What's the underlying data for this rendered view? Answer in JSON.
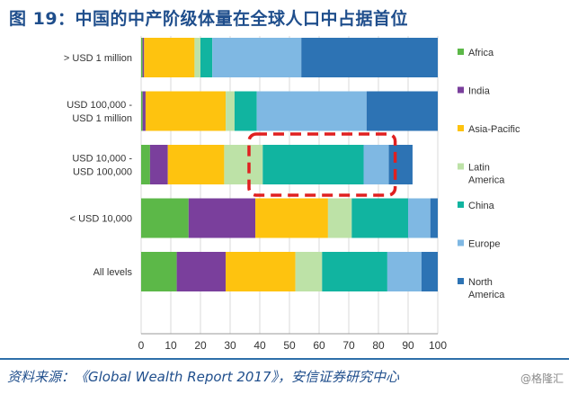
{
  "title": "图 19：中国的中产阶级体量在全球人口中占据首位",
  "source": "资料来源：《Global Wealth Report 2017》，安信证券研究中心",
  "watermark": "@格隆汇",
  "chart_data": {
    "type": "bar",
    "orientation": "horizontal",
    "stacked": true,
    "categories": [
      "> USD 1 million",
      "USD 100,000 -\nUSD 1 million",
      "USD 10,000 -\nUSD 100,000",
      "< USD 10,000",
      "All levels"
    ],
    "series": [
      {
        "name": "Africa",
        "color": "#5cb848",
        "values": [
          0.5,
          0.5,
          3,
          16,
          12
        ]
      },
      {
        "name": "India",
        "color": "#7a3f9c",
        "values": [
          0.5,
          1,
          6,
          22.5,
          16.5
        ]
      },
      {
        "name": "Asia-Pacific",
        "color": "#fec30f",
        "values": [
          17,
          27,
          19,
          24.5,
          23.5
        ]
      },
      {
        "name": "Latin America",
        "color": "#bde2a7",
        "values": [
          2,
          3,
          13,
          8,
          9
        ]
      },
      {
        "name": "China",
        "color": "#11b4a0",
        "values": [
          4,
          7.5,
          34,
          19,
          22
        ]
      },
      {
        "name": "Europe",
        "color": "#7fb8e3",
        "values": [
          30,
          37,
          8.5,
          7.5,
          11.5
        ]
      },
      {
        "name": "North America",
        "color": "#2d73b4",
        "values": [
          46,
          24,
          8,
          2.5,
          5.5
        ]
      }
    ],
    "xlim": [
      0,
      100
    ],
    "xticks": [
      0,
      10,
      20,
      30,
      40,
      50,
      60,
      70,
      80,
      90,
      100
    ],
    "grid": "vertical",
    "legend_position": "right",
    "annotation": {
      "type": "dashed-rectangle",
      "color": "#e02020",
      "category": "USD 10,000 -\nUSD 100,000",
      "x_range": [
        40,
        82
      ]
    }
  }
}
